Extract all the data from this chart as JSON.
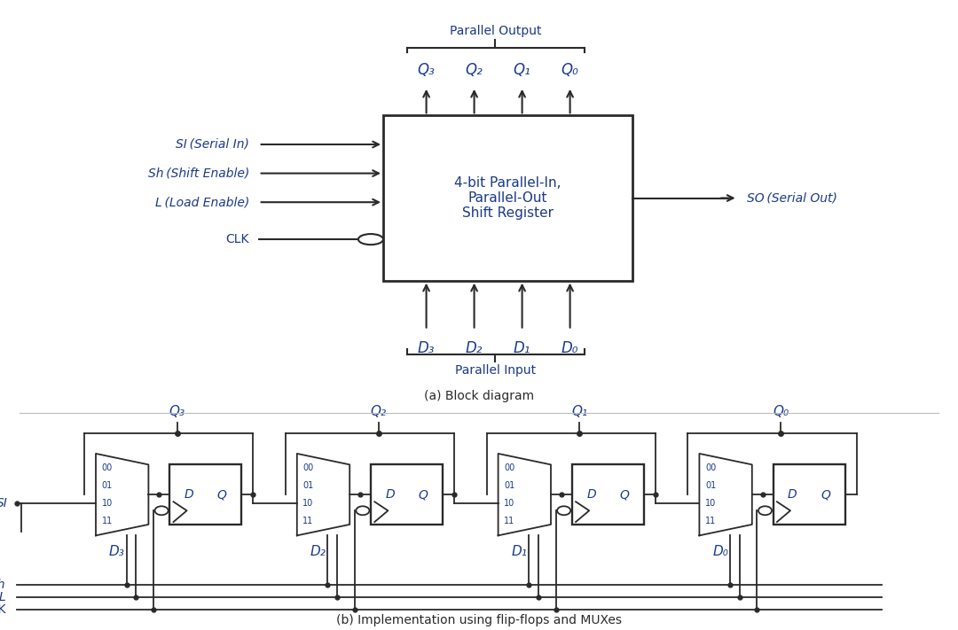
{
  "bg_color": "#ffffff",
  "line_color": "#2a2a2a",
  "blue_color": "#1a3a8a",
  "title_a": "(a) Block diagram",
  "title_b": "(b) Implementation using flip-flops and MUXes",
  "block_text": "4-bit Parallel-In,\nParallel-Out\nShift Register",
  "parallel_output_label": "Parallel Output",
  "parallel_input_label": "Parallel Input",
  "q_labels": [
    "Q₃",
    "Q₂",
    "Q₁",
    "Q₀"
  ],
  "d_labels": [
    "D₃",
    "D₂",
    "D₁",
    "D₀"
  ],
  "input_labels_italic": [
    "SI (Serial In)",
    "Sh (Shift Enable)",
    "L (Load Enable)"
  ],
  "clk_label": "CLK",
  "so_label": "SO (Serial Out)",
  "mux_labels": [
    "00",
    "01",
    "10",
    "11"
  ],
  "q_labels_b": [
    "Q₃",
    "Q₂",
    "Q₁",
    "Q₀"
  ],
  "d_labels_b": [
    "D₃",
    "D₂",
    "D₁",
    "D₀"
  ],
  "si_label": "SI",
  "sh_label": "Sh",
  "l_label": "L",
  "clk_label_b": "CLK"
}
